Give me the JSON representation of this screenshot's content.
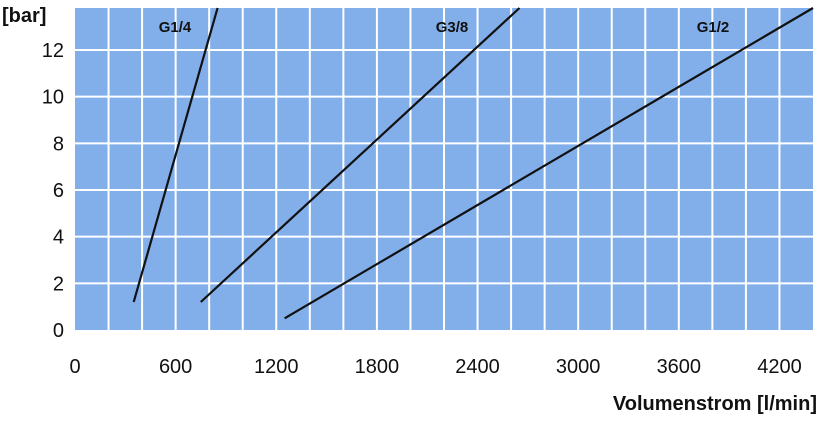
{
  "chart_data": {
    "type": "line",
    "title": "",
    "xlabel": "Volumenstrom [l/min]",
    "ylabel": "[bar]",
    "xlim": [
      0,
      4400
    ],
    "ylim": [
      0,
      13.8
    ],
    "x_ticks": [
      0,
      600,
      1200,
      1800,
      2400,
      3000,
      3600,
      4200
    ],
    "y_ticks": [
      0,
      2,
      4,
      6,
      8,
      10,
      12
    ],
    "grid": true,
    "legend": "none",
    "plot_background": "#82AEEA",
    "grid_color": "#FFFFFF",
    "line_color": "#111111",
    "series": [
      {
        "name": "G1/4",
        "x": [
          350,
          850
        ],
        "y": [
          1.2,
          13.8
        ]
      },
      {
        "name": "G3/8",
        "x": [
          750,
          2650
        ],
        "y": [
          1.2,
          13.8
        ]
      },
      {
        "name": "G1/2",
        "x": [
          1250,
          4400
        ],
        "y": [
          0.5,
          13.8
        ]
      }
    ]
  }
}
